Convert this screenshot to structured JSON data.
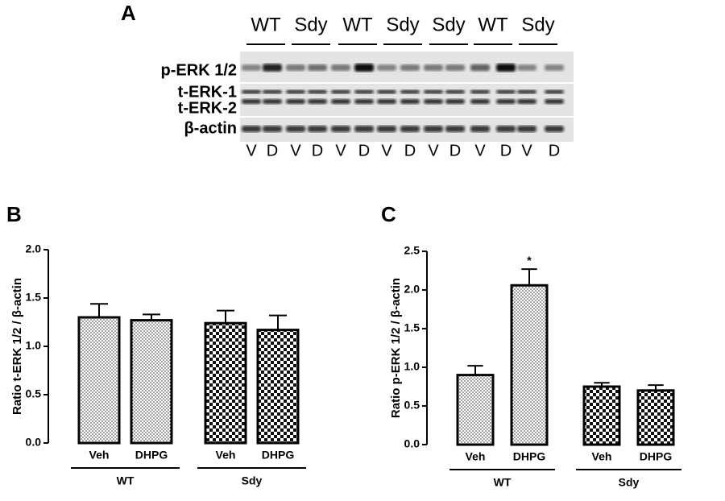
{
  "blot": {
    "panel": "A",
    "groups": [
      "WT",
      "Sdy",
      "WT",
      "Sdy",
      "Sdy",
      "WT",
      "Sdy"
    ],
    "rows": [
      "p-ERK 1/2",
      "t-ERK-1",
      "t-ERK-2",
      "β-actin"
    ],
    "lanes": [
      "V",
      "D",
      "V",
      "D",
      "V",
      "D",
      "V",
      "D",
      "V",
      "D",
      "V",
      "D",
      "V",
      "D"
    ]
  },
  "chart_data": [
    {
      "type": "bar",
      "panel": "B",
      "ylabel": "Ratio t-ERK 1/2 / β-actin",
      "ylim": [
        0,
        2
      ],
      "yticks": [
        {
          "value": 0,
          "label": "0.0"
        },
        {
          "value": 0.5,
          "label": "0.5"
        },
        {
          "value": 1,
          "label": "1.0"
        },
        {
          "value": 1.5,
          "label": "1.5"
        },
        {
          "value": 2,
          "label": "2.0"
        }
      ],
      "groups": [
        {
          "name": "WT",
          "pattern": "dots",
          "categories": [
            "Veh",
            "DHPG"
          ],
          "values": [
            1.3,
            1.27
          ],
          "errors": [
            0.14,
            0.06
          ]
        },
        {
          "name": "Sdy",
          "pattern": "checker",
          "categories": [
            "Veh",
            "DHPG"
          ],
          "values": [
            1.24,
            1.17
          ],
          "errors": [
            0.13,
            0.15
          ]
        }
      ]
    },
    {
      "type": "bar",
      "panel": "C",
      "ylabel": "Ratio p-ERK 1/2 / β-actin",
      "ylim": [
        0,
        2.5
      ],
      "yticks": [
        {
          "value": 0,
          "label": "0.0"
        },
        {
          "value": 0.5,
          "label": "0.5"
        },
        {
          "value": 1,
          "label": "1.0"
        },
        {
          "value": 1.5,
          "label": "1.5"
        },
        {
          "value": 2,
          "label": "2.0"
        },
        {
          "value": 2.5,
          "label": "2.5"
        }
      ],
      "groups": [
        {
          "name": "WT",
          "pattern": "dots",
          "categories": [
            "Veh",
            "DHPG"
          ],
          "values": [
            0.9,
            2.06
          ],
          "errors": [
            0.12,
            0.21
          ],
          "annotations": [
            null,
            "*"
          ]
        },
        {
          "name": "Sdy",
          "pattern": "checker",
          "categories": [
            "Veh",
            "DHPG"
          ],
          "values": [
            0.75,
            0.7
          ],
          "errors": [
            0.05,
            0.07
          ]
        }
      ]
    }
  ]
}
